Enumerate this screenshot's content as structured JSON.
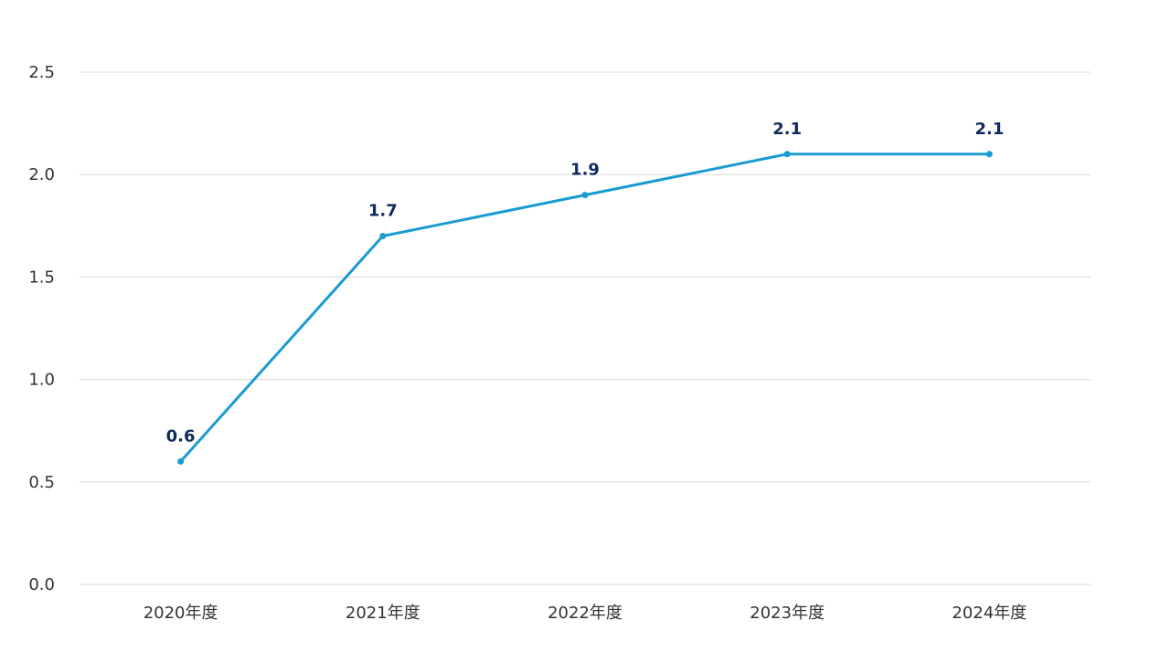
{
  "chart_data": {
    "type": "line",
    "title": "",
    "xlabel": "",
    "ylabel": "",
    "categories": [
      "2020年度",
      "2021年度",
      "2022年度",
      "2023年度",
      "2024年度"
    ],
    "series": [
      {
        "values": [
          0.6,
          1.7,
          1.9,
          2.1,
          2.1
        ],
        "color": "#1b9bd1",
        "data_labels": [
          "0.6",
          "1.7",
          "1.9",
          "2.1",
          "2.1"
        ]
      }
    ],
    "ylim": [
      0,
      2.5
    ],
    "yticks": [
      0.0,
      0.5,
      1.0,
      1.5,
      2.0,
      2.5
    ],
    "ytick_labels": [
      "0.0",
      "0.5",
      "1.0",
      "1.5",
      "2.0",
      "2.5"
    ],
    "grid": true,
    "legend": "none",
    "label_color": "#0f2a5c"
  }
}
